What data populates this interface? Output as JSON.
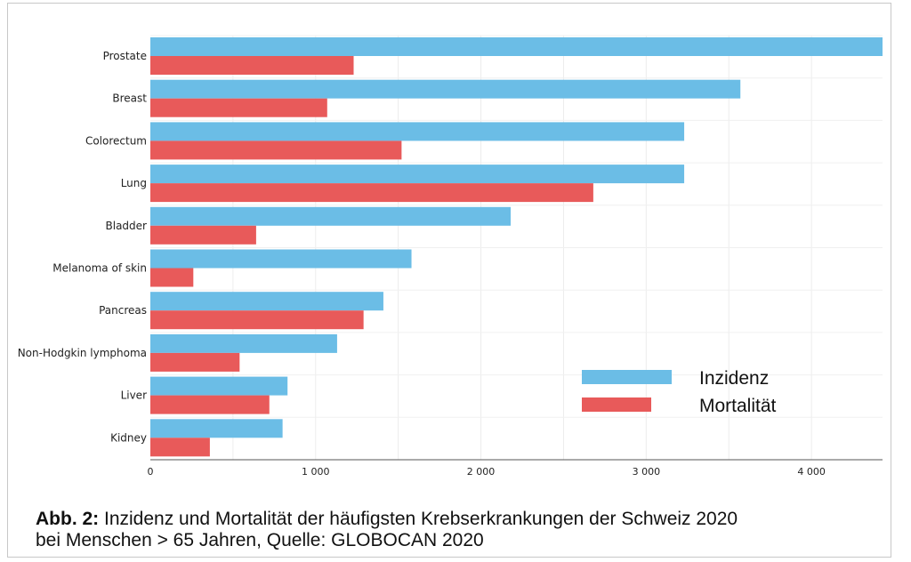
{
  "chart_data": {
    "type": "bar",
    "orientation": "horizontal",
    "categories": [
      "Prostate",
      "Breast",
      "Colorectum",
      "Lung",
      "Bladder",
      "Melanoma of skin",
      "Pancreas",
      "Non-Hodgkin lymphoma",
      "Liver",
      "Kidney"
    ],
    "series": [
      {
        "name": "Inzidenz",
        "color": "#6bbde6",
        "values": [
          4430,
          3570,
          3230,
          3230,
          2180,
          1580,
          1410,
          1130,
          830,
          800
        ]
      },
      {
        "name": "Mortalität",
        "color": "#e85a5a",
        "values": [
          1230,
          1070,
          1520,
          2680,
          640,
          260,
          1290,
          540,
          720,
          360
        ]
      }
    ],
    "x_ticks": [
      0,
      1000,
      2000,
      3000,
      4000
    ],
    "x_tick_labels": [
      "0",
      "1 000",
      "2 000",
      "3 000",
      "4 000"
    ],
    "xlim": [
      0,
      4430
    ],
    "grid": true,
    "legend_position": "bottom-right"
  },
  "caption": {
    "label": "Abb. 2:",
    "line1": " Inzidenz und Mortalität der häufigsten Krebserkrankungen der Schweiz 2020",
    "line2": "bei Menschen > 65 Jahren, Quelle: GLOBOCAN 2020"
  }
}
